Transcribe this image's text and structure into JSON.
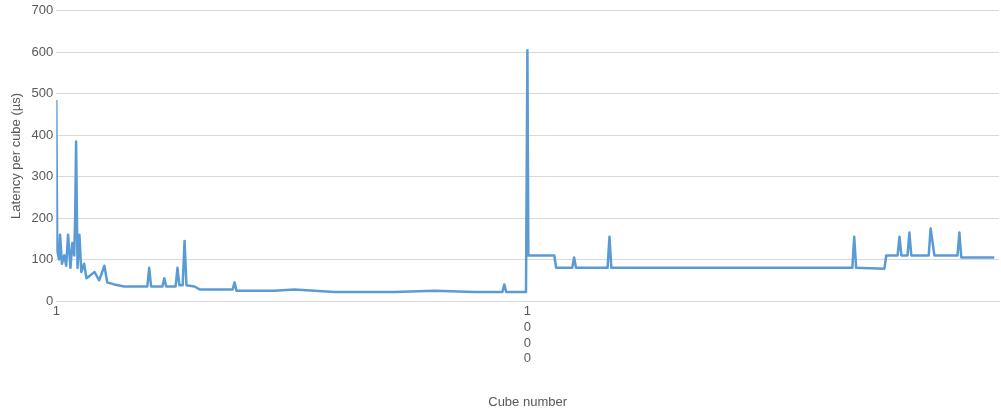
{
  "chart_data": {
    "type": "line",
    "xlabel": "Cube number",
    "ylabel": "Latency per cube (µs)",
    "x": [
      1,
      3,
      7,
      9,
      13,
      18,
      22,
      26,
      31,
      35,
      39,
      41,
      43,
      46,
      50,
      54,
      60,
      65,
      71,
      82,
      92,
      103,
      109,
      124,
      145,
      166,
      194,
      198,
      202,
      226,
      230,
      234,
      254,
      258,
      262,
      269,
      273,
      277,
      294,
      305,
      336,
      375,
      379,
      383,
      463,
      506,
      591,
      718,
      803,
      888,
      947,
      951,
      955,
      993,
      997,
      1000,
      1002,
      1057,
      1061,
      1095,
      1099,
      1103,
      1170,
      1174,
      1178,
      1354,
      1566,
      1689,
      1693,
      1697,
      1757,
      1761,
      1785,
      1789,
      1793,
      1806,
      1810,
      1814,
      1851,
      1855,
      1863,
      1912,
      1916,
      1920,
      1990
    ],
    "series": [
      {
        "color": "#5b9bd5",
        "values": [
          485,
          120,
          100,
          160,
          90,
          110,
          85,
          160,
          80,
          140,
          110,
          200,
          385,
          80,
          160,
          70,
          90,
          55,
          60,
          70,
          50,
          85,
          45,
          40,
          35,
          35,
          35,
          80,
          35,
          35,
          55,
          35,
          35,
          80,
          38,
          38,
          145,
          38,
          35,
          28,
          28,
          28,
          45,
          25,
          25,
          28,
          22,
          22,
          25,
          22,
          22,
          40,
          22,
          22,
          22,
          605,
          110,
          110,
          80,
          80,
          105,
          80,
          80,
          155,
          80,
          80,
          80,
          80,
          155,
          80,
          78,
          110,
          110,
          155,
          110,
          110,
          165,
          110,
          110,
          175,
          110,
          110,
          165,
          105,
          105
        ]
      }
    ],
    "xlim": [
      1,
      2000
    ],
    "xticks": [
      1,
      1000
    ],
    "ylim": [
      0,
      700
    ],
    "yticks": [
      0,
      100,
      200,
      300,
      400,
      500,
      600,
      700
    ],
    "grid": "y",
    "legend": false,
    "marker": "none",
    "line_style": "solid"
  }
}
